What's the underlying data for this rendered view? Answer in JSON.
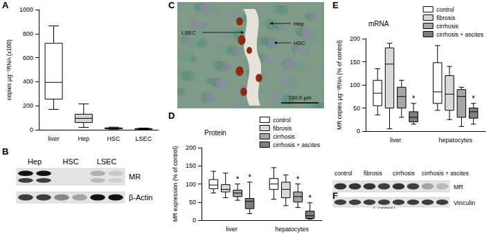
{
  "chart_data": [
    {
      "panel": "A",
      "type": "boxplot",
      "ylabel": "copies µg⁻¹RNA (x100)",
      "categories": [
        "liver",
        "Hep",
        "HSC",
        "LSEC"
      ],
      "series": [
        {
          "colors": [
            "#ffffff",
            "#d3d3d3",
            "#a0a0a0",
            "#a0a0a0"
          ],
          "values": [
            [
              170,
              255,
              395,
              720,
              865
            ],
            [
              20,
              60,
              95,
              130,
              215
            ],
            [
              5,
              8,
              12,
              16,
              22
            ],
            [
              3,
              5,
              8,
              10,
              14
            ]
          ]
        }
      ],
      "ylim": [
        0,
        1000
      ],
      "yticks": [
        0,
        200,
        400,
        600,
        800,
        1000
      ],
      "grid": false
    },
    {
      "panel": "D",
      "type": "boxplot",
      "title": "Protein",
      "ylabel": "MR expression (% of control)",
      "categories": [
        "liver",
        "hepatocytes"
      ],
      "series": [
        {
          "name": "control",
          "color": "#ffffff",
          "values": [
            [
              75,
              87,
              97,
              112,
              135
            ],
            [
              58,
              85,
              100,
              115,
              145
            ]
          ]
        },
        {
          "name": "fibrosis",
          "color": "#d9d9d9",
          "values": [
            [
              62,
              78,
              85,
              98,
              130
            ],
            [
              40,
              62,
              85,
              105,
              125
            ]
          ]
        },
        {
          "name": "cirrhosis",
          "color": "#a6a6a6",
          "values": [
            [
              55,
              65,
              75,
              83,
              100
            ],
            [
              35,
              50,
              65,
              78,
              100
            ]
          ],
          "annotations": [
            "*",
            "*"
          ]
        },
        {
          "name": "cirrhosis + ascites",
          "color": "#7f7f7f",
          "values": [
            [
              18,
              32,
              52,
              60,
              105
            ],
            [
              3,
              5,
              12,
              25,
              48
            ]
          ],
          "annotations": [
            "*",
            "*"
          ]
        }
      ],
      "ylim": [
        0,
        200
      ],
      "yticks": [
        0,
        50,
        100,
        150,
        200
      ],
      "grid": false,
      "legend": "top-right"
    },
    {
      "panel": "E",
      "type": "boxplot",
      "title": "mRNA",
      "ylabel": "MR copies µg⁻¹RNA (% of control)",
      "categories": [
        "liver",
        "hepatocytes"
      ],
      "series": [
        {
          "name": "control",
          "color": "#ffffff",
          "values": [
            [
              35,
              55,
              82,
              110,
              135
            ],
            [
              45,
              60,
              85,
              148,
              185
            ]
          ]
        },
        {
          "name": "fibrosis",
          "color": "#d9d9d9",
          "values": [
            [
              5,
              50,
              145,
              180,
              190
            ],
            [
              25,
              45,
              80,
              120,
              140
            ]
          ]
        },
        {
          "name": "cirrhosis",
          "color": "#a6a6a6",
          "values": [
            [
              30,
              50,
              75,
              95,
              110
            ],
            [
              10,
              30,
              75,
              90,
              95
            ]
          ]
        },
        {
          "name": "cirrhosis + ascites",
          "color": "#7f7f7f",
          "values": [
            [
              15,
              20,
              30,
              42,
              60
            ],
            [
              15,
              28,
              42,
              50,
              60
            ]
          ],
          "annotations": [
            "*",
            "*"
          ]
        }
      ],
      "ylim": [
        0,
        200
      ],
      "yticks": [
        0,
        50,
        100,
        150,
        200
      ],
      "grid": false,
      "legend": "top-right"
    }
  ],
  "blots": [
    {
      "panel": "B",
      "lanes": [
        "Hep",
        "HSC",
        "LSEC"
      ],
      "rows": [
        "MR",
        "β-Actin"
      ]
    },
    {
      "panel": "F",
      "title": "Protein",
      "lanes": [
        "control",
        "fibrosis",
        "cirrhosis",
        "cirrhosis + ascites"
      ],
      "rows": [
        "MR",
        "Vinculin"
      ]
    }
  ],
  "micrograph": {
    "panel": "C",
    "labels": [
      "LSEC",
      "Hep",
      "HSC"
    ],
    "scale_bar": "100.0 µm"
  }
}
